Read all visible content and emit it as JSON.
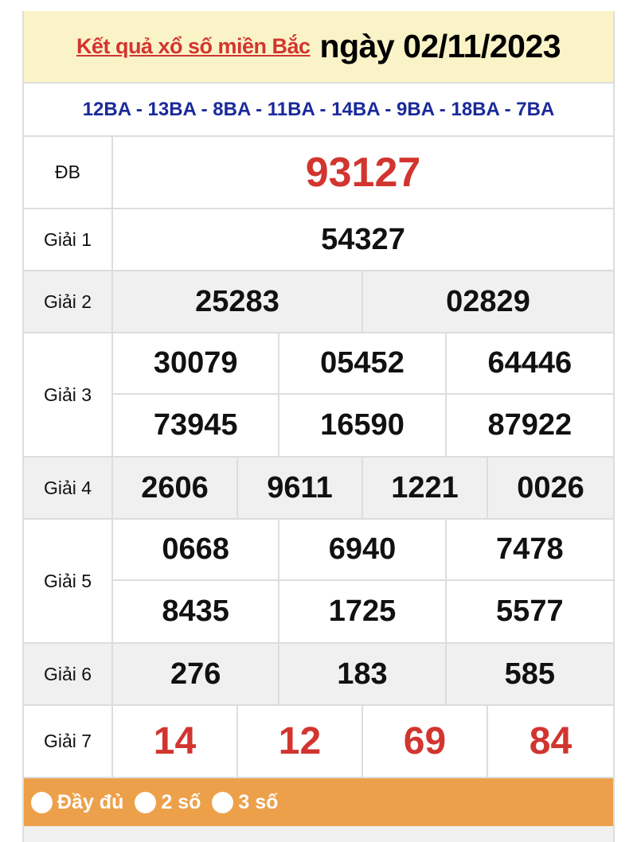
{
  "header": {
    "link_text": "Kết quả xổ số miền Bắc",
    "date_text": "ngày 02/11/2023"
  },
  "codes": "12BA - 13BA - 8BA - 11BA - 14BA - 9BA - 18BA - 7BA",
  "prizes": [
    {
      "label": "ĐB",
      "numbers": [
        "93127"
      ],
      "cols": 1,
      "red": true,
      "gray": false
    },
    {
      "label": "Giải 1",
      "numbers": [
        "54327"
      ],
      "cols": 1,
      "gray": false
    },
    {
      "label": "Giải 2",
      "numbers": [
        "25283",
        "02829"
      ],
      "cols": 2,
      "gray": true
    },
    {
      "label": "Giải 3",
      "numbers": [
        "30079",
        "05452",
        "64446",
        "73945",
        "16590",
        "87922"
      ],
      "cols": 3,
      "gray": false
    },
    {
      "label": "Giải 4",
      "numbers": [
        "2606",
        "9611",
        "1221",
        "0026"
      ],
      "cols": 4,
      "gray": true
    },
    {
      "label": "Giải 5",
      "numbers": [
        "0668",
        "6940",
        "7478",
        "8435",
        "1725",
        "5577"
      ],
      "cols": 3,
      "gray": false
    },
    {
      "label": "Giải 6",
      "numbers": [
        "276",
        "183",
        "585"
      ],
      "cols": 3,
      "gray": true
    },
    {
      "label": "Giải 7",
      "numbers": [
        "14",
        "12",
        "69",
        "84"
      ],
      "cols": 4,
      "red": true,
      "gray": false
    }
  ],
  "display_options": [
    "Đầy đủ",
    "2 số",
    "3 số"
  ],
  "colors": {
    "red": "#d2352f",
    "navy": "#1a2a9a",
    "header_bg": "#fbf3c8",
    "footer_bg": "#eda04a"
  }
}
